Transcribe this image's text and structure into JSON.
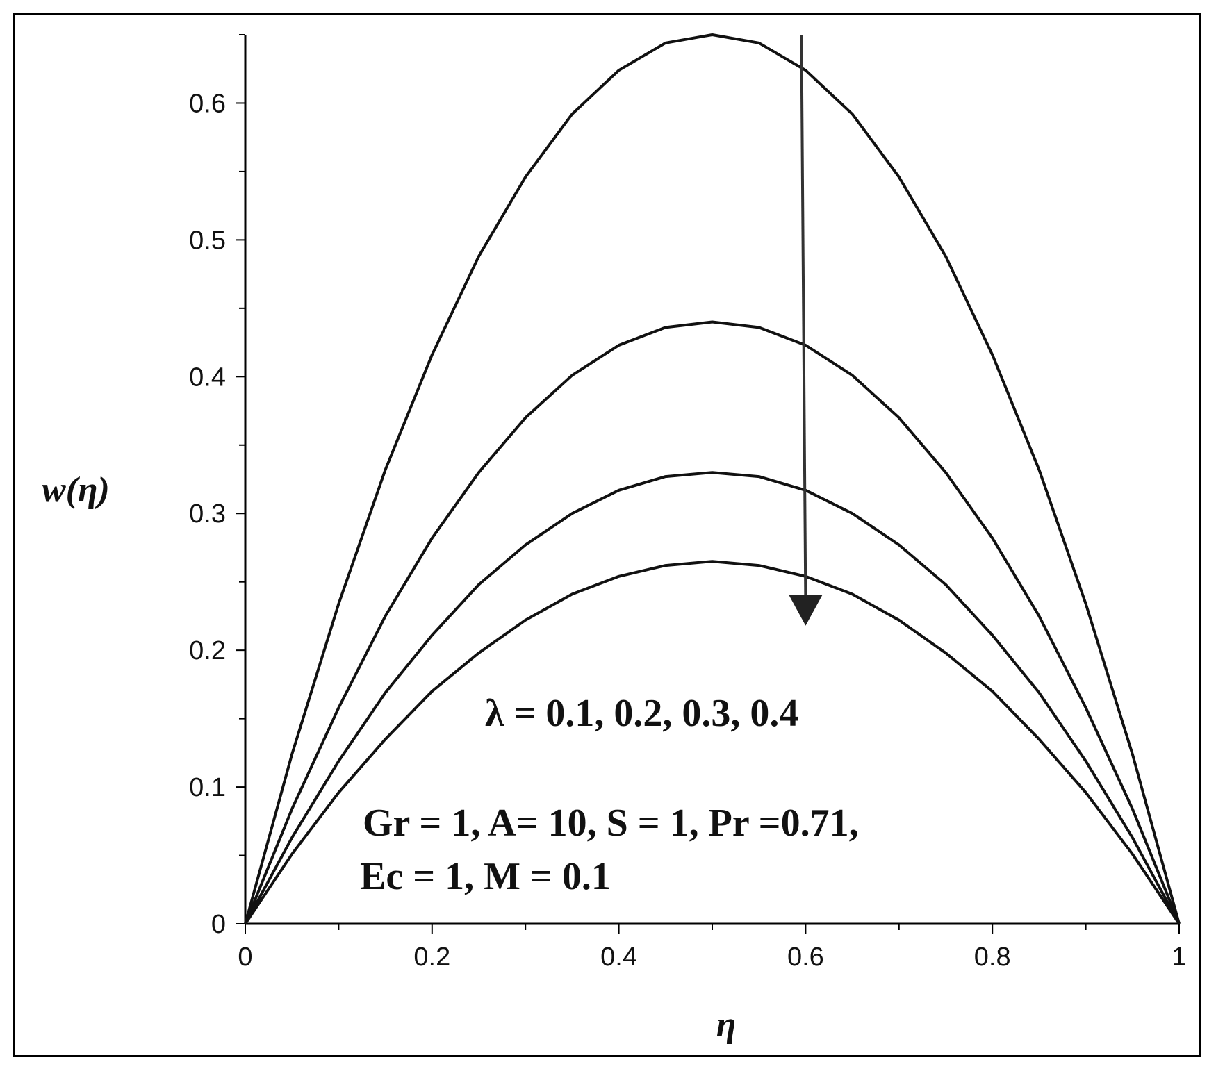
{
  "chart_data": {
    "type": "line",
    "xlabel": "η",
    "ylabel": "w(η)",
    "xlim": [
      0,
      1
    ],
    "ylim": [
      0,
      0.65
    ],
    "x_ticks": [
      "0",
      "0.2",
      "0.4",
      "0.6",
      "0.8",
      "1"
    ],
    "y_ticks": [
      "0",
      "0.1",
      "0.2",
      "0.3",
      "0.4",
      "0.5",
      "0.6"
    ],
    "x": [
      0,
      0.05,
      0.1,
      0.15,
      0.2,
      0.25,
      0.3,
      0.35,
      0.4,
      0.45,
      0.5,
      0.55,
      0.6,
      0.65,
      0.7,
      0.75,
      0.8,
      0.85,
      0.9,
      0.95,
      1
    ],
    "series": [
      {
        "values": [
          0,
          0.124,
          0.234,
          0.332,
          0.416,
          0.488,
          0.546,
          0.592,
          0.624,
          0.644,
          0.65,
          0.644,
          0.624,
          0.592,
          0.546,
          0.488,
          0.416,
          0.332,
          0.234,
          0.124,
          0
        ]
      },
      {
        "values": [
          0,
          0.084,
          0.158,
          0.225,
          0.282,
          0.33,
          0.37,
          0.401,
          0.423,
          0.436,
          0.44,
          0.436,
          0.423,
          0.401,
          0.37,
          0.33,
          0.282,
          0.225,
          0.158,
          0.084,
          0
        ]
      },
      {
        "values": [
          0,
          0.063,
          0.119,
          0.169,
          0.211,
          0.248,
          0.277,
          0.3,
          0.317,
          0.327,
          0.33,
          0.327,
          0.317,
          0.3,
          0.277,
          0.248,
          0.211,
          0.169,
          0.119,
          0.063,
          0
        ]
      },
      {
        "values": [
          0,
          0.051,
          0.096,
          0.135,
          0.17,
          0.198,
          0.222,
          0.241,
          0.254,
          0.262,
          0.265,
          0.262,
          0.254,
          0.241,
          0.222,
          0.198,
          0.17,
          0.135,
          0.096,
          0.051,
          0
        ]
      }
    ],
    "annotations": {
      "arrow": {
        "x": 0.6,
        "y_from": 0.65,
        "y_to": 0.22
      },
      "lambda_text": "λ = 0.1, 0.2, 0.3, 0.4",
      "params_line1": "Gr = 1, A= 10, S = 1, Pr =0.71,",
      "params_line2": "Ec = 1, M = 0.1"
    },
    "grid": false,
    "legend": "none"
  }
}
